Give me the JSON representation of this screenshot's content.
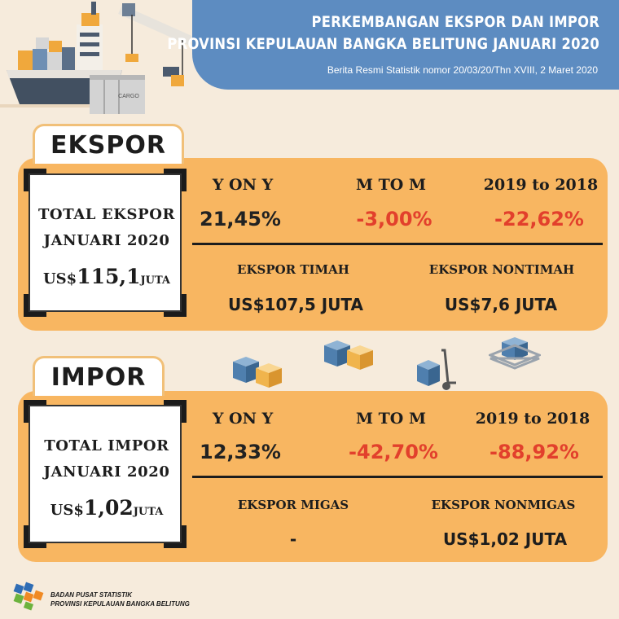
{
  "header": {
    "title_line1": "PERKEMBANGAN EKSPOR DAN IMPOR",
    "title_line2": "PROVINSI KEPULAUAN BANGKA BELITUNG JANUARI 2020",
    "subtitle": "Berita Resmi Statistik nomor 20/03/20/Thn XVIII, 2 Maret 2020",
    "container_text": "CARGO"
  },
  "ekspor": {
    "tab_label": "EKSPOR",
    "total_line1": "TOTAL EKSPOR",
    "total_line2": "JANUARI 2020",
    "total_currency": "US$",
    "total_value": "115,1",
    "total_unit": "JUTA",
    "yoy_label": "Y ON Y",
    "yoy_value": "21,45%",
    "mtm_label": "M TO M",
    "mtm_value": "-3,00%",
    "annual_label": "2019 to 2018",
    "annual_value": "-22,62%",
    "sub1_label": "EKSPOR TIMAH",
    "sub1_value": "US$107,5 JUTA",
    "sub2_label": "EKSPOR NONTIMAH",
    "sub2_value": "US$7,6 JUTA"
  },
  "impor": {
    "tab_label": "IMPOR",
    "total_line1": "TOTAL IMPOR",
    "total_line2": "JANUARI 2020",
    "total_currency": "US$",
    "total_value": "1,02",
    "total_unit": "JUTA",
    "yoy_label": "Y ON Y",
    "yoy_value": "12,33%",
    "mtm_label": "M TO M",
    "mtm_value": "-42,70%",
    "annual_label": "2019 to 2018",
    "annual_value": "-88,92%",
    "sub1_label": "EKSPOR MIGAS",
    "sub1_value": "-",
    "sub2_label": "EKSPOR NONMIGAS",
    "sub2_value": "US$1,02 JUTA"
  },
  "footer": {
    "org_line1": "BADAN PUSAT STATISTIK",
    "org_line2": "PROVINSI KEPULAUAN BANGKA BELITUNG"
  },
  "colors": {
    "banner": "#5d8cc1",
    "panel": "#f8b661",
    "background": "#f6ebdc",
    "negative": "#e2402c"
  }
}
